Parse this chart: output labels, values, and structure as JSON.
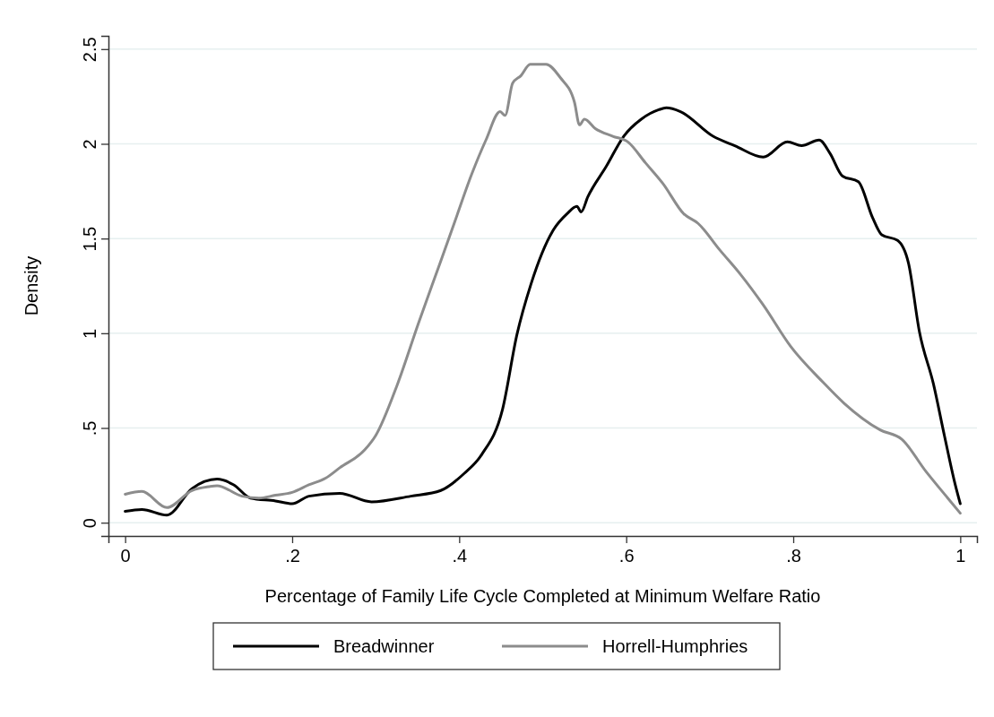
{
  "chart_data": {
    "type": "line",
    "xlabel": "Percentage of Family Life Cycle Completed at Minimum Welfare Ratio",
    "ylabel": "Density",
    "xlim": [
      -0.02,
      1.02
    ],
    "ylim": [
      -0.07,
      2.57
    ],
    "xticks": [
      {
        "value": 0,
        "label": "0"
      },
      {
        "value": 0.2,
        "label": ".2"
      },
      {
        "value": 0.4,
        "label": ".4"
      },
      {
        "value": 0.6,
        "label": ".6"
      },
      {
        "value": 0.8,
        "label": ".8"
      },
      {
        "value": 1,
        "label": "1"
      }
    ],
    "yticks": [
      {
        "value": 0,
        "label": "0"
      },
      {
        "value": 0.5,
        "label": ".5"
      },
      {
        "value": 1,
        "label": "1"
      },
      {
        "value": 1.5,
        "label": "1.5"
      },
      {
        "value": 2,
        "label": "2"
      },
      {
        "value": 2.5,
        "label": "2.5"
      }
    ],
    "grid": "y",
    "legend": "bottom",
    "line_style": "solid",
    "marker": "none",
    "series": [
      {
        "name": "Breadwinner",
        "color": "#000000",
        "x": [
          0,
          0.02,
          0.05,
          0.08,
          0.11,
          0.13,
          0.15,
          0.18,
          0.2,
          0.22,
          0.257,
          0.295,
          0.342,
          0.378,
          0.406,
          0.427,
          0.452,
          0.469,
          0.486,
          0.512,
          0.529,
          0.541,
          0.546,
          0.554,
          0.576,
          0.597,
          0.618,
          0.639,
          0.648,
          0.665,
          0.704,
          0.73,
          0.764,
          0.793,
          0.81,
          0.831,
          0.844,
          0.859,
          0.878,
          0.895,
          0.906,
          0.925,
          0.938,
          0.951,
          0.968,
          0.981,
          0.994,
          1.0
        ],
        "values": [
          0.06,
          0.07,
          0.04,
          0.18,
          0.23,
          0.2,
          0.13,
          0.115,
          0.1,
          0.14,
          0.155,
          0.11,
          0.14,
          0.17,
          0.26,
          0.36,
          0.6,
          0.99,
          1.26,
          1.54,
          1.63,
          1.67,
          1.64,
          1.72,
          1.88,
          2.04,
          2.13,
          2.18,
          2.19,
          2.17,
          2.04,
          1.99,
          1.93,
          2.01,
          1.99,
          2.02,
          1.95,
          1.83,
          1.8,
          1.61,
          1.52,
          1.49,
          1.37,
          1.01,
          0.73,
          0.46,
          0.2,
          0.1
        ]
      },
      {
        "name": "Horrell-Humphries",
        "color": "#8c8c8c",
        "x": [
          0,
          0.02,
          0.05,
          0.08,
          0.1,
          0.11,
          0.14,
          0.16,
          0.18,
          0.2,
          0.22,
          0.24,
          0.257,
          0.287,
          0.3,
          0.326,
          0.351,
          0.377,
          0.394,
          0.415,
          0.432,
          0.449,
          0.455,
          0.464,
          0.474,
          0.485,
          0.504,
          0.521,
          0.538,
          0.544,
          0.55,
          0.563,
          0.584,
          0.602,
          0.623,
          0.644,
          0.669,
          0.686,
          0.712,
          0.737,
          0.764,
          0.797,
          0.836,
          0.861,
          0.904,
          0.93,
          0.959,
          0.985,
          1.0
        ],
        "values": [
          0.15,
          0.165,
          0.08,
          0.17,
          0.19,
          0.195,
          0.14,
          0.13,
          0.145,
          0.16,
          0.2,
          0.235,
          0.29,
          0.385,
          0.46,
          0.73,
          1.05,
          1.37,
          1.58,
          1.84,
          2.02,
          2.17,
          2.15,
          2.32,
          2.36,
          2.42,
          2.42,
          2.35,
          2.22,
          2.1,
          2.13,
          2.08,
          2.04,
          2.01,
          1.9,
          1.79,
          1.63,
          1.58,
          1.44,
          1.31,
          1.15,
          0.93,
          0.74,
          0.63,
          0.49,
          0.44,
          0.27,
          0.13,
          0.05
        ]
      }
    ]
  }
}
